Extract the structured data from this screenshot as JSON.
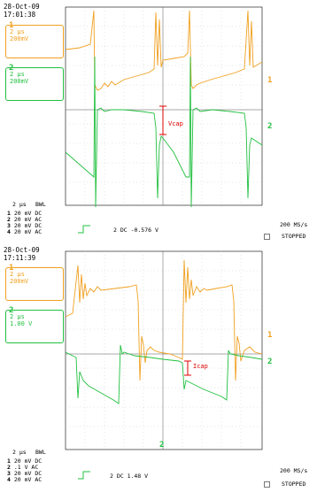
{
  "scope1": {
    "date": "28-Oct-09",
    "time": "17:01:38",
    "ch1_box": [
      "2 µs",
      "200mV"
    ],
    "ch2_box": [
      "2 µs",
      "200mV"
    ],
    "ch1_marker": "1",
    "ch2_marker": "2",
    "annotation": "Vcap",
    "timebase": "2 µs",
    "bwl": "BWL",
    "channels": [
      {
        "n": "1",
        "volts": "20 mV",
        "coupling": "DC"
      },
      {
        "n": "2",
        "volts": "20 mV",
        "coupling": "AC"
      },
      {
        "n": "3",
        "volts": "20 mV",
        "coupling": "DC"
      },
      {
        "n": "4",
        "volts": "20 mV",
        "coupling": "AC"
      }
    ],
    "trigger": "2 DC -0.576 V",
    "rate": "200 MS/s",
    "status": "STOPPED"
  },
  "scope2": {
    "date": "28-Oct-09",
    "time": "17:11:39",
    "ch1_box": [
      "2 µs",
      "200mV"
    ],
    "ch2_box": [
      "2 µs",
      "1.00 V"
    ],
    "ch1_marker": "1",
    "ch2_marker": "2",
    "annotation": "Icap",
    "timebase": "2 µs",
    "bwl": "BWL",
    "channels": [
      {
        "n": "1",
        "volts": "20 mV",
        "coupling": "DC"
      },
      {
        "n": "2",
        "volts": ".1  V",
        "coupling": "AC"
      },
      {
        "n": "3",
        "volts": "20 mV",
        "coupling": "DC"
      },
      {
        "n": "4",
        "volts": "20 mV",
        "coupling": "AC"
      }
    ],
    "trigger": "2 DC 1.48 V",
    "rate": "200 MS/s",
    "status": "STOPPED"
  },
  "colors": {
    "ch1": "#f0a020",
    "ch2": "#22c040",
    "annot": "#e00000"
  }
}
